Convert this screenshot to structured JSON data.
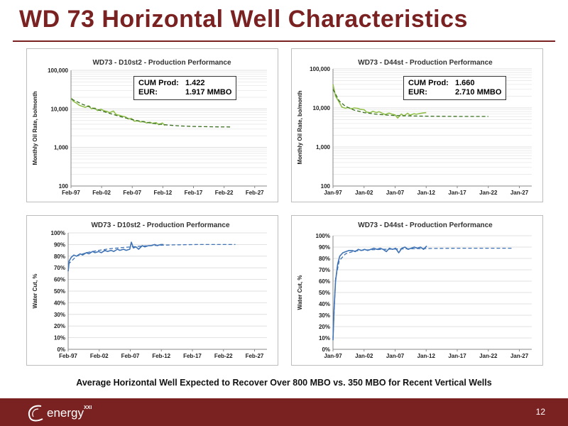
{
  "slide": {
    "title": "WD 73 Horizontal Well Characteristics",
    "caption": "Average Horizontal Well Expected to Recover Over 800 MBO vs. 350 MBO for Recent Vertical Wells",
    "page_number": "12",
    "brand": {
      "name": "energy",
      "suffix": "XXI"
    },
    "colors": {
      "title": "#7a2121",
      "footer": "#7a2121",
      "oil": "#92c04a",
      "oil_forecast": "#3a6f22",
      "water": "#3f73b5",
      "water_forecast": "#3f73b5"
    }
  },
  "chart_data": [
    {
      "id": "oil_d10",
      "type": "line",
      "title": "WD73 - D10st2 - Production Performance",
      "ylabel": "Monthly Oil Rate, bo/month",
      "yscale": "log",
      "ylim": [
        100,
        100000
      ],
      "yticks": [
        100,
        1000,
        10000,
        100000
      ],
      "ytick_labels": [
        "100",
        "1,000",
        "10,000",
        "100,000"
      ],
      "xlim": [
        "1997-02",
        "2029-02"
      ],
      "xtick_labels": [
        "Feb-97",
        "Feb-02",
        "Feb-07",
        "Feb-12",
        "Feb-17",
        "Feb-22",
        "Feb-27"
      ],
      "xticks": [
        "1997-02",
        "2002-02",
        "2007-02",
        "2012-02",
        "2017-02",
        "2022-02",
        "2027-02"
      ],
      "annotation": {
        "label1": "CUM Prod:",
        "value1": "1.422",
        "label2": "EUR:",
        "value2": "1.917 MMBO"
      },
      "series": [
        {
          "style": "solid",
          "color": "#92c04a",
          "x": [
            "1997-03",
            "1997-06",
            "1998-01",
            "1998-06",
            "1999-01",
            "1999-06",
            "2000-01",
            "2000-06",
            "2001-01",
            "2001-06",
            "2002-01",
            "2002-06",
            "2003-01",
            "2003-06",
            "2004-01",
            "2004-06",
            "2005-01",
            "2005-06",
            "2006-01",
            "2006-06",
            "2007-01",
            "2007-06",
            "2008-01",
            "2008-06",
            "2009-01",
            "2009-06",
            "2010-01",
            "2010-06",
            "2011-01",
            "2011-06",
            "2012-01",
            "2012-06"
          ],
          "y": [
            19000,
            16000,
            14000,
            12500,
            11500,
            11000,
            12000,
            10000,
            10500,
            9000,
            9800,
            9000,
            8500,
            8000,
            8800,
            7200,
            6800,
            6500,
            6200,
            5500,
            5600,
            4800,
            4900,
            4600,
            4700,
            4300,
            4500,
            4200,
            4400,
            3900,
            4300,
            3700
          ]
        },
        {
          "style": "dashed",
          "color": "#3a6f22",
          "x": [
            "1997-03",
            "1999-01",
            "2001-01",
            "2003-01",
            "2005-01",
            "2007-01",
            "2009-01",
            "2011-01",
            "2013-01",
            "2015-01",
            "2017-01",
            "2019-01",
            "2021-01",
            "2023-02"
          ],
          "y": [
            18000,
            13000,
            10000,
            8000,
            6400,
            5300,
            4600,
            4100,
            3800,
            3600,
            3500,
            3450,
            3420,
            3400
          ]
        }
      ]
    },
    {
      "id": "oil_d44",
      "type": "line",
      "title": "WD73 - D44st - Production Performance",
      "ylabel": "Monthly Oil Rate, bo/month",
      "yscale": "log",
      "ylim": [
        100,
        100000
      ],
      "yticks": [
        100,
        1000,
        10000,
        100000
      ],
      "ytick_labels": [
        "100",
        "1,000",
        "10,000",
        "100,000"
      ],
      "xlim": [
        "1997-01",
        "2029-01"
      ],
      "xtick_labels": [
        "Jan-97",
        "Jan-02",
        "Jan-07",
        "Jan-12",
        "Jan-17",
        "Jan-22",
        "Jan-27"
      ],
      "xticks": [
        "1997-01",
        "2002-01",
        "2007-01",
        "2012-01",
        "2017-01",
        "2022-01",
        "2027-01"
      ],
      "annotation": {
        "label1": "CUM Prod:",
        "value1": "1.660",
        "label2": "EUR:",
        "value2": "2.710 MMBO"
      },
      "series": [
        {
          "style": "solid",
          "color": "#92c04a",
          "x": [
            "1997-01",
            "1997-06",
            "1998-01",
            "1998-06",
            "1999-01",
            "1999-06",
            "2000-01",
            "2000-06",
            "2001-01",
            "2001-06",
            "2002-01",
            "2002-06",
            "2003-01",
            "2003-06",
            "2004-01",
            "2004-06",
            "2005-01",
            "2005-06",
            "2006-01",
            "2006-06",
            "2007-01",
            "2007-06",
            "2008-01",
            "2008-06",
            "2009-01",
            "2009-06",
            "2010-01",
            "2010-06",
            "2011-01",
            "2011-06",
            "2012-01"
          ],
          "y": [
            40000,
            20000,
            14000,
            10500,
            9800,
            10200,
            9500,
            10000,
            9700,
            9200,
            9000,
            7800,
            7500,
            8200,
            7600,
            8000,
            7200,
            6800,
            7400,
            7000,
            6600,
            5500,
            7000,
            6200,
            7300,
            6500,
            7100,
            6900,
            7200,
            7400,
            7600
          ]
        },
        {
          "style": "dashed",
          "color": "#3a6f22",
          "x": [
            "1997-01",
            "1998-01",
            "1999-01",
            "2000-06",
            "2002-01",
            "2004-01",
            "2006-01",
            "2008-01",
            "2010-01",
            "2012-01",
            "2014-01",
            "2016-01",
            "2018-01",
            "2020-01",
            "2022-01"
          ],
          "y": [
            30000,
            15000,
            11000,
            8800,
            7600,
            6900,
            6500,
            6300,
            6200,
            6150,
            6100,
            6080,
            6060,
            6050,
            6050
          ]
        }
      ]
    },
    {
      "id": "wc_d10",
      "type": "line",
      "title": "WD73 - D10st2 - Production Performance",
      "ylabel": "Water Cut, %",
      "ylim": [
        0,
        100
      ],
      "yticks": [
        0,
        10,
        20,
        30,
        40,
        50,
        60,
        70,
        80,
        90,
        100
      ],
      "ytick_labels": [
        "0%",
        "10%",
        "20%",
        "30%",
        "40%",
        "50%",
        "60%",
        "70%",
        "80%",
        "90%",
        "100%"
      ],
      "xlim": [
        "1997-02",
        "2029-02"
      ],
      "xtick_labels": [
        "Feb-97",
        "Feb-02",
        "Feb-07",
        "Feb-12",
        "Feb-17",
        "Feb-22",
        "Feb-27"
      ],
      "xticks": [
        "1997-02",
        "2002-02",
        "2007-02",
        "2012-02",
        "2017-02",
        "2022-02",
        "2027-02"
      ],
      "series": [
        {
          "style": "solid",
          "color": "#3f73b5",
          "x": [
            "1997-02",
            "1997-04",
            "1997-08",
            "1998-01",
            "1998-06",
            "1999-01",
            "1999-06",
            "2000-01",
            "2000-06",
            "2001-01",
            "2001-06",
            "2002-01",
            "2002-06",
            "2003-01",
            "2003-06",
            "2004-01",
            "2004-06",
            "2005-01",
            "2005-06",
            "2006-01",
            "2006-06",
            "2007-01",
            "2007-04",
            "2007-08",
            "2008-01",
            "2008-06",
            "2009-01",
            "2009-06",
            "2010-01",
            "2010-06",
            "2011-01",
            "2011-06",
            "2012-01",
            "2012-06"
          ],
          "y": [
            67,
            76,
            79,
            81,
            80,
            82,
            81,
            83,
            82,
            84,
            83,
            84,
            83,
            85,
            84,
            85,
            84,
            86,
            85,
            86,
            85,
            86,
            92,
            87,
            88,
            86,
            89,
            88,
            89,
            89,
            90,
            89,
            90,
            90
          ]
        },
        {
          "style": "dashed",
          "color": "#3f73b5",
          "x": [
            "1997-02",
            "1998-06",
            "2000-01",
            "2002-01",
            "2004-01",
            "2006-01",
            "2008-01",
            "2010-01",
            "2012-01",
            "2014-01",
            "2016-01",
            "2018-01",
            "2020-01",
            "2022-01",
            "2024-01"
          ],
          "y": [
            73,
            80,
            83,
            85,
            86.5,
            87.5,
            88.3,
            89,
            89.4,
            89.7,
            89.9,
            90,
            90,
            90,
            90
          ]
        }
      ]
    },
    {
      "id": "wc_d44",
      "type": "line",
      "title": "WD73 - D44st - Production Performance",
      "ylabel": "Water Cut, %",
      "ylim": [
        0,
        100
      ],
      "yticks": [
        0,
        10,
        20,
        30,
        40,
        50,
        60,
        70,
        80,
        90,
        100
      ],
      "ytick_labels": [
        "0%",
        "10%",
        "20%",
        "30%",
        "40%",
        "50%",
        "60%",
        "70%",
        "80%",
        "90%",
        "100%"
      ],
      "xlim": [
        "1997-01",
        "2029-01"
      ],
      "xtick_labels": [
        "Jan-97",
        "Jan-02",
        "Jan-07",
        "Jan-12",
        "Jan-17",
        "Jan-22",
        "Jan-27"
      ],
      "xticks": [
        "1997-01",
        "2002-01",
        "2007-01",
        "2012-01",
        "2017-01",
        "2022-01",
        "2027-01"
      ],
      "series": [
        {
          "style": "solid",
          "color": "#3f73b5",
          "x": [
            "1997-01",
            "1997-03",
            "1997-06",
            "1997-10",
            "1998-02",
            "1998-08",
            "1999-02",
            "1999-08",
            "2000-02",
            "2000-08",
            "2001-02",
            "2001-08",
            "2002-02",
            "2002-08",
            "2003-02",
            "2003-08",
            "2004-02",
            "2004-08",
            "2005-02",
            "2005-08",
            "2006-02",
            "2006-08",
            "2007-02",
            "2007-08",
            "2008-02",
            "2008-08",
            "2009-02",
            "2009-08",
            "2010-02",
            "2010-08",
            "2011-02",
            "2011-08",
            "2012-02"
          ],
          "y": [
            8,
            35,
            60,
            75,
            82,
            85,
            86,
            87,
            87,
            86,
            88,
            87,
            88,
            87,
            88,
            89,
            88,
            89,
            88,
            86,
            89,
            88,
            89,
            85,
            89,
            90,
            88,
            89,
            90,
            89,
            90,
            88,
            91
          ]
        },
        {
          "style": "dashed",
          "color": "#3f73b5",
          "x": [
            "1997-01",
            "1997-06",
            "1998-01",
            "1999-01",
            "2000-06",
            "2002-06",
            "2005-01",
            "2008-01",
            "2011-01",
            "2014-01",
            "2017-01",
            "2020-01",
            "2023-01",
            "2026-01"
          ],
          "y": [
            10,
            62,
            78,
            84,
            86.5,
            87.5,
            88,
            88.4,
            88.7,
            88.9,
            89,
            89,
            89,
            89
          ]
        }
      ]
    }
  ]
}
